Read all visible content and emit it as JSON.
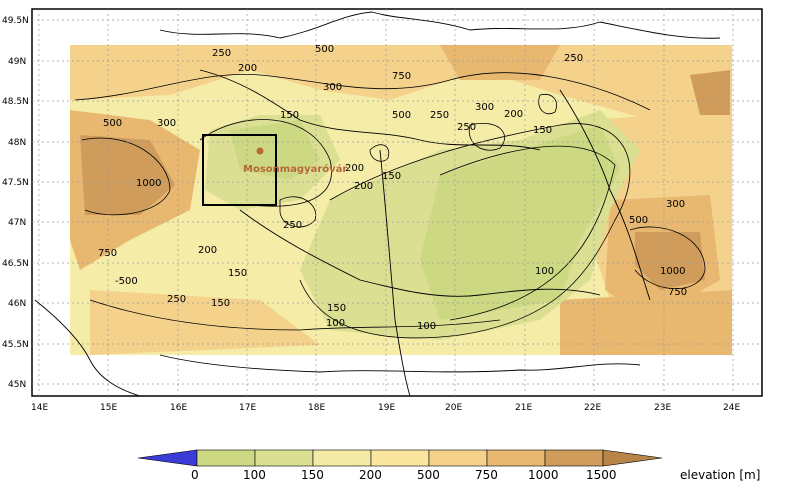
{
  "map": {
    "x_ticks": [
      "14E",
      "15E",
      "16E",
      "17E",
      "18E",
      "19E",
      "20E",
      "21E",
      "22E",
      "23E",
      "24E"
    ],
    "y_ticks": [
      "49.5N",
      "49N",
      "48.5N",
      "48N",
      "47.5N",
      "47N",
      "46.5N",
      "46N",
      "45.5N",
      "45N"
    ],
    "station": "Mosonmagyaróvár",
    "contour_labels": [
      "250",
      "500",
      "200",
      "300",
      "750",
      "250",
      "1000",
      "500",
      "250",
      "300",
      "150",
      "500",
      "250",
      "300",
      "200",
      "150",
      "200",
      "200",
      "150",
      "250",
      "750",
      "-500",
      "200",
      "150",
      "250",
      "150",
      "150",
      "100",
      "100",
      "100",
      "500",
      "300",
      "1000",
      "750"
    ]
  },
  "legend": {
    "ticks": [
      "0",
      "100",
      "150",
      "200",
      "500",
      "750",
      "1000",
      "1500"
    ],
    "title": "elevation [m]",
    "colors": [
      "#3b3bd8",
      "#cdd882",
      "#dadf92",
      "#f2eaa6",
      "#fbe6a0",
      "#f4d28c",
      "#e8b870",
      "#cf9c5c",
      "#b88448"
    ]
  }
}
